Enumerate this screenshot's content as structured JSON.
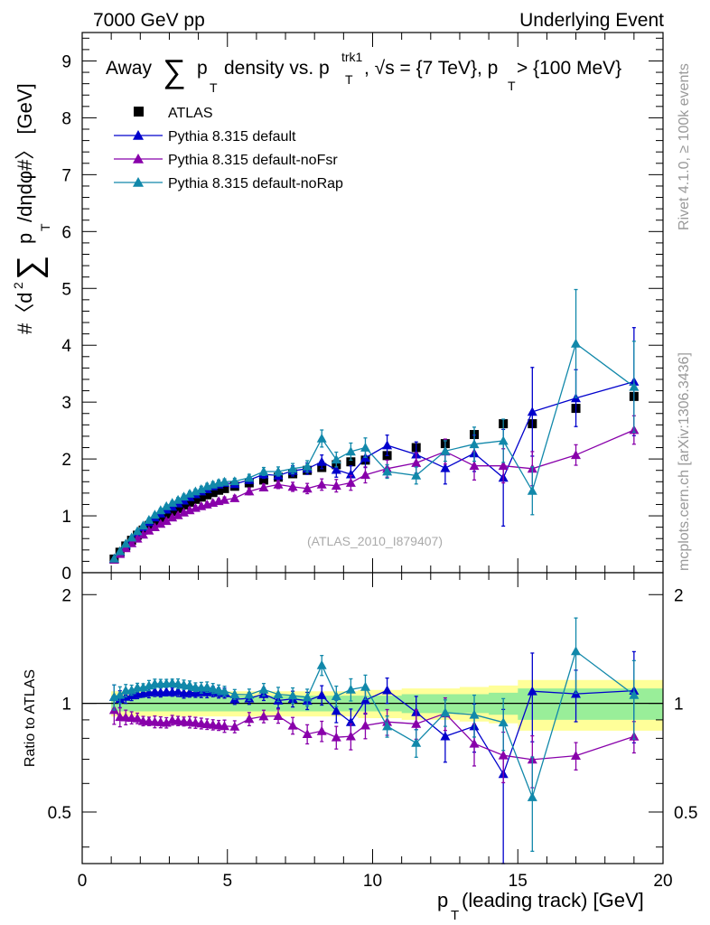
{
  "header": {
    "left": "7000 GeV pp",
    "right": "Underlying Event"
  },
  "side_right_top": "Rivet 4.1.0, ≥ 100k events",
  "side_right_bottom": "mcplots.cern.ch [arXiv:1306.3436]",
  "watermark": "(ATLAS_2010_I879407)",
  "chart_data": {
    "type": "scatter",
    "title_parts": {
      "t1": "Away",
      "t2": "p",
      "t3": "T",
      "t4": "density vs. p",
      "t5": "T",
      "t6": "trk1",
      "t7": ", √s = {7 TeV}, p",
      "t8": "T",
      "t9": " > {100 MeV}"
    },
    "ylabel_parts": {
      "a": "#〈d",
      "b": "2",
      "c": "p",
      "d": "T",
      "e": "/dηdφ#〉 [GeV]"
    },
    "ratio_ylabel": "Ratio to ATLAS",
    "xlabel_parts": {
      "a": "p",
      "b": "T",
      "c": " (leading track) [GeV]"
    },
    "xlim": [
      0,
      20
    ],
    "ylim": [
      0,
      9.5
    ],
    "ratio_ylim": [
      0.36,
      2.3
    ],
    "x_ticks": [
      "0",
      "5",
      "10",
      "15",
      "20"
    ],
    "y_ticks": [
      "0",
      "1",
      "2",
      "3",
      "4",
      "5",
      "6",
      "7",
      "8",
      "9"
    ],
    "ratio_ticks": [
      "0.5",
      "1",
      "2"
    ],
    "x": [
      1.1,
      1.3,
      1.5,
      1.7,
      1.9,
      2.1,
      2.3,
      2.5,
      2.7,
      2.9,
      3.1,
      3.3,
      3.5,
      3.7,
      3.9,
      4.1,
      4.3,
      4.5,
      4.7,
      4.9,
      5.25,
      5.75,
      6.25,
      6.75,
      7.25,
      7.75,
      8.25,
      8.75,
      9.25,
      9.75,
      10.5,
      11.5,
      12.5,
      13.5,
      14.5,
      15.5,
      17.0,
      19.0
    ],
    "series": [
      {
        "name": "ATLAS",
        "color": "#000000",
        "marker": "square",
        "values": [
          0.24,
          0.36,
          0.47,
          0.57,
          0.66,
          0.75,
          0.83,
          0.9,
          0.97,
          1.03,
          1.08,
          1.13,
          1.19,
          1.24,
          1.29,
          1.33,
          1.37,
          1.41,
          1.45,
          1.48,
          1.52,
          1.58,
          1.63,
          1.68,
          1.74,
          1.8,
          1.85,
          1.9,
          1.95,
          1.98,
          2.06,
          2.2,
          2.27,
          2.43,
          2.62,
          2.62,
          2.89,
          3.1
        ],
        "band_stat": [
          0.05,
          0.05,
          0.05,
          0.05,
          0.05,
          0.05,
          0.05,
          0.05,
          0.05,
          0.05,
          0.05,
          0.05,
          0.05,
          0.05,
          0.05,
          0.05,
          0.05,
          0.05,
          0.05,
          0.05,
          0.05,
          0.05,
          0.05,
          0.05,
          0.05,
          0.05,
          0.05,
          0.05,
          0.05,
          0.05,
          0.05,
          0.06,
          0.06,
          0.06,
          0.07,
          0.1,
          0.1,
          0.1
        ],
        "band_tot": [
          0.08,
          0.08,
          0.08,
          0.08,
          0.08,
          0.08,
          0.08,
          0.08,
          0.08,
          0.08,
          0.08,
          0.08,
          0.08,
          0.08,
          0.08,
          0.08,
          0.08,
          0.08,
          0.08,
          0.08,
          0.08,
          0.08,
          0.08,
          0.08,
          0.08,
          0.08,
          0.08,
          0.08,
          0.08,
          0.09,
          0.09,
          0.1,
          0.1,
          0.11,
          0.12,
          0.16,
          0.16,
          0.16
        ]
      },
      {
        "name": "Pythia 8.315 default",
        "color": "#0000cc",
        "marker": "triangle",
        "values": [
          0.25,
          0.37,
          0.49,
          0.6,
          0.7,
          0.8,
          0.89,
          0.97,
          1.04,
          1.11,
          1.16,
          1.22,
          1.27,
          1.33,
          1.38,
          1.43,
          1.47,
          1.52,
          1.55,
          1.58,
          1.56,
          1.63,
          1.73,
          1.71,
          1.79,
          1.83,
          1.95,
          1.81,
          1.73,
          2.02,
          2.24,
          2.08,
          1.84,
          2.1,
          1.67,
          2.83,
          3.07,
          3.36
        ],
        "err": [
          0.02,
          0.02,
          0.02,
          0.02,
          0.02,
          0.02,
          0.03,
          0.03,
          0.03,
          0.03,
          0.03,
          0.04,
          0.04,
          0.04,
          0.04,
          0.05,
          0.05,
          0.05,
          0.05,
          0.05,
          0.05,
          0.06,
          0.07,
          0.08,
          0.09,
          0.1,
          0.12,
          0.13,
          0.15,
          0.17,
          0.18,
          0.22,
          0.28,
          0.32,
          0.85,
          0.78,
          0.5,
          0.95
        ]
      },
      {
        "name": "Pythia 8.315 default-noFsr",
        "color": "#8800aa",
        "marker": "triangle",
        "values": [
          0.23,
          0.33,
          0.43,
          0.52,
          0.6,
          0.67,
          0.74,
          0.8,
          0.86,
          0.91,
          0.97,
          1.01,
          1.06,
          1.1,
          1.14,
          1.17,
          1.2,
          1.23,
          1.26,
          1.28,
          1.31,
          1.43,
          1.5,
          1.55,
          1.51,
          1.48,
          1.55,
          1.53,
          1.58,
          1.72,
          1.83,
          1.93,
          2.13,
          1.88,
          1.88,
          1.83,
          2.07,
          2.51
        ],
        "err": [
          0.02,
          0.02,
          0.02,
          0.02,
          0.02,
          0.02,
          0.02,
          0.03,
          0.03,
          0.03,
          0.03,
          0.03,
          0.03,
          0.04,
          0.04,
          0.04,
          0.04,
          0.04,
          0.04,
          0.05,
          0.05,
          0.06,
          0.06,
          0.07,
          0.08,
          0.09,
          0.1,
          0.11,
          0.13,
          0.14,
          0.15,
          0.18,
          0.22,
          0.25,
          0.3,
          0.3,
          0.18,
          0.25
        ]
      },
      {
        "name": "Pythia 8.315 default-noRap",
        "color": "#1188aa",
        "marker": "triangle",
        "values": [
          0.25,
          0.38,
          0.51,
          0.62,
          0.73,
          0.83,
          0.93,
          1.02,
          1.1,
          1.17,
          1.23,
          1.28,
          1.34,
          1.39,
          1.43,
          1.47,
          1.52,
          1.55,
          1.58,
          1.6,
          1.61,
          1.67,
          1.78,
          1.78,
          1.83,
          1.87,
          2.36,
          1.99,
          2.13,
          2.2,
          1.78,
          1.71,
          2.14,
          2.26,
          2.32,
          1.44,
          4.03,
          3.27
        ],
        "err": [
          0.02,
          0.02,
          0.02,
          0.02,
          0.02,
          0.02,
          0.03,
          0.03,
          0.03,
          0.03,
          0.03,
          0.04,
          0.04,
          0.04,
          0.04,
          0.05,
          0.05,
          0.05,
          0.05,
          0.05,
          0.05,
          0.06,
          0.07,
          0.08,
          0.09,
          0.1,
          0.15,
          0.13,
          0.15,
          0.17,
          0.12,
          0.15,
          0.18,
          0.3,
          0.38,
          0.42,
          0.95,
          0.8
        ]
      }
    ]
  }
}
